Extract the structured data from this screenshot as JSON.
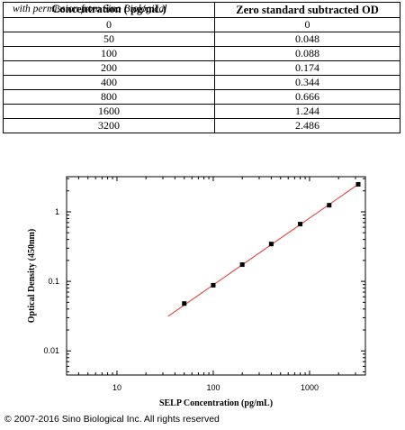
{
  "table": {
    "headers": [
      "Concentration ( pg/mL)",
      "Zero standard subtracted OD"
    ],
    "watermark": "with permission from Sino Biological",
    "rows": [
      [
        "0",
        "0"
      ],
      [
        "50",
        "0.048"
      ],
      [
        "100",
        "0.088"
      ],
      [
        "200",
        "0.174"
      ],
      [
        "400",
        "0.344"
      ],
      [
        "800",
        "0.666"
      ],
      [
        "1600",
        "1.244"
      ],
      [
        "3200",
        "2.486"
      ]
    ]
  },
  "chart_data": {
    "type": "scatter",
    "xlabel": "SELP Concentration (pg/mL)",
    "ylabel": "Optical Density (450nm)",
    "xscale": "log",
    "yscale": "log",
    "xlim": [
      3,
      3800
    ],
    "ylim": [
      0.0045,
      3.2
    ],
    "x_ticks": [
      10,
      100,
      1000
    ],
    "x_tick_labels": [
      "10",
      "100",
      "1000"
    ],
    "y_ticks": [
      0.01,
      0.1,
      1
    ],
    "y_tick_labels": [
      "0.01",
      "0.1",
      "1"
    ],
    "grid": false,
    "series": [
      {
        "x": [
          50,
          100,
          200,
          400,
          800,
          1600,
          3200
        ],
        "y": [
          0.048,
          0.088,
          0.174,
          0.344,
          0.666,
          1.244,
          2.486
        ],
        "marker": "square",
        "color": "#000000"
      }
    ],
    "fit_line": {
      "x": [
        34,
        3200
      ],
      "y": [
        0.0315,
        2.486
      ],
      "color": "#e8312b"
    }
  },
  "footer": "© 2007-2016 Sino Biological Inc. All rights reserved"
}
